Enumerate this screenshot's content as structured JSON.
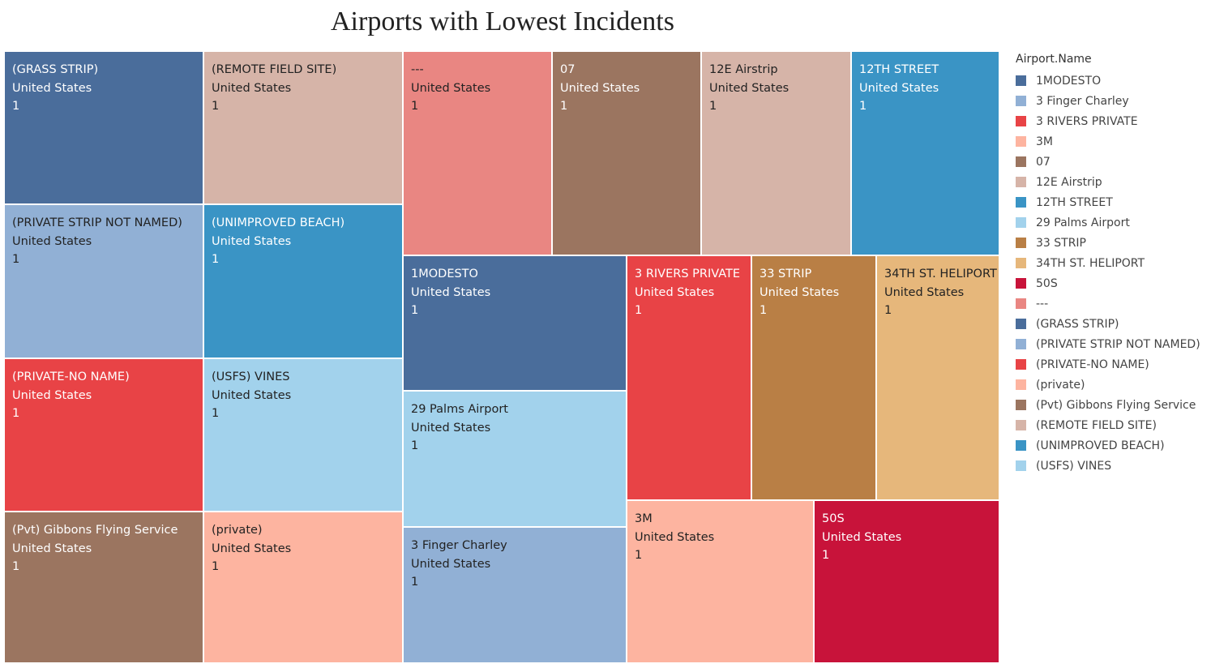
{
  "title": "Airports with Lowest Incidents",
  "legend": {
    "title": "Airport.Name",
    "items": [
      {
        "label": "1MODESTO",
        "color": "#4a6d9b"
      },
      {
        "label": "3 Finger Charley",
        "color": "#91b0d5"
      },
      {
        "label": "3 RIVERS PRIVATE",
        "color": "#e84346"
      },
      {
        "label": "3M",
        "color": "#fdb4a0"
      },
      {
        "label": "07",
        "color": "#9b7560"
      },
      {
        "label": "12E Airstrip",
        "color": "#d6b4a8"
      },
      {
        "label": "12TH STREET",
        "color": "#3a94c5"
      },
      {
        "label": "29 Palms Airport",
        "color": "#a2d2ec"
      },
      {
        "label": "33 STRIP",
        "color": "#b97f45"
      },
      {
        "label": "34TH ST. HELIPORT",
        "color": "#e6b77b"
      },
      {
        "label": "50S",
        "color": "#c8133a"
      },
      {
        "label": "---",
        "color": "#e98682"
      },
      {
        "label": "(GRASS STRIP)",
        "color": "#4a6d9b"
      },
      {
        "label": "(PRIVATE STRIP NOT NAMED)",
        "color": "#91b0d5"
      },
      {
        "label": "(PRIVATE-NO NAME)",
        "color": "#e84346"
      },
      {
        "label": "(private)",
        "color": "#fdb4a0"
      },
      {
        "label": "(Pvt) Gibbons Flying Service",
        "color": "#9b7560"
      },
      {
        "label": "(REMOTE FIELD SITE)",
        "color": "#d6b4a8"
      },
      {
        "label": "(UNIMPROVED BEACH)",
        "color": "#3a94c5"
      },
      {
        "label": "(USFS) VINES",
        "color": "#a2d2ec"
      }
    ]
  },
  "chart_data": {
    "type": "treemap",
    "title": "Airports with Lowest Incidents",
    "size_measure": "incidents",
    "tiles": [
      {
        "name": "(GRASS STRIP)",
        "country": "United States",
        "value": 1,
        "color": "#4a6d9b",
        "text": "dark"
      },
      {
        "name": "(REMOTE FIELD SITE)",
        "country": "United States",
        "value": 1,
        "color": "#d6b4a8",
        "text": "light"
      },
      {
        "name": "---",
        "country": "United States",
        "value": 1,
        "color": "#e98682",
        "text": "light"
      },
      {
        "name": "07",
        "country": "United States",
        "value": 1,
        "color": "#9b7560",
        "text": "dark"
      },
      {
        "name": "12E Airstrip",
        "country": "United States",
        "value": 1,
        "color": "#d6b4a8",
        "text": "light"
      },
      {
        "name": "12TH STREET",
        "country": "United States",
        "value": 1,
        "color": "#3a94c5",
        "text": "dark"
      },
      {
        "name": "(PRIVATE STRIP NOT NAMED)",
        "country": "United States",
        "value": 1,
        "color": "#91b0d5",
        "text": "light"
      },
      {
        "name": "(UNIMPROVED BEACH)",
        "country": "United States",
        "value": 1,
        "color": "#3a94c5",
        "text": "dark"
      },
      {
        "name": "1MODESTO",
        "country": "United States",
        "value": 1,
        "color": "#4a6d9b",
        "text": "dark"
      },
      {
        "name": "3 RIVERS PRIVATE",
        "country": "United States",
        "value": 1,
        "color": "#e84346",
        "text": "dark"
      },
      {
        "name": "33 STRIP",
        "country": "United States",
        "value": 1,
        "color": "#b97f45",
        "text": "dark"
      },
      {
        "name": "34TH ST. HELIPORT",
        "country": "United States",
        "value": 1,
        "color": "#e6b77b",
        "text": "light"
      },
      {
        "name": "(PRIVATE-NO NAME)",
        "country": "United States",
        "value": 1,
        "color": "#e84346",
        "text": "dark"
      },
      {
        "name": "(USFS) VINES",
        "country": "United States",
        "value": 1,
        "color": "#a2d2ec",
        "text": "light"
      },
      {
        "name": "29 Palms Airport",
        "country": "United States",
        "value": 1,
        "color": "#a2d2ec",
        "text": "light"
      },
      {
        "name": "3 Finger Charley",
        "country": "United States",
        "value": 1,
        "color": "#91b0d5",
        "text": "light"
      },
      {
        "name": "(Pvt) Gibbons Flying Service",
        "country": "United States",
        "value": 1,
        "color": "#9b7560",
        "text": "dark"
      },
      {
        "name": "(private)",
        "country": "United States",
        "value": 1,
        "color": "#fdb4a0",
        "text": "light"
      },
      {
        "name": "3M",
        "country": "United States",
        "value": 1,
        "color": "#fdb4a0",
        "text": "light"
      },
      {
        "name": "50S",
        "country": "United States",
        "value": 1,
        "color": "#c8133a",
        "text": "dark"
      }
    ]
  }
}
